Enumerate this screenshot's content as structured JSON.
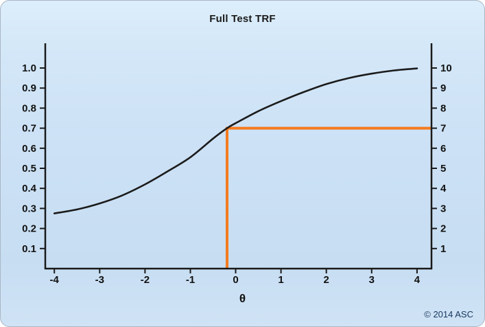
{
  "title": "Full Test TRF",
  "footer": {
    "copyright": "© 2014 ASC"
  },
  "chart_data": {
    "type": "line",
    "title": "Full Test TRF",
    "xlabel": "θ",
    "x_ticks": [
      -4,
      -3,
      -2,
      -1,
      0,
      1,
      2,
      3,
      4
    ],
    "y_ticks_left": [
      0.1,
      0.2,
      0.3,
      0.4,
      0.5,
      0.6,
      0.7,
      0.8,
      0.9,
      1.0
    ],
    "y_ticks_right": [
      1,
      2,
      3,
      4,
      5,
      6,
      7,
      8,
      9,
      10
    ],
    "xlim": [
      -4.2,
      4.32
    ],
    "ylim": [
      0,
      1.1233
    ],
    "grid": false,
    "legend": false,
    "colors": {
      "axis": "#1a1a1a",
      "curve": "#1b1b1b",
      "annotation": "#f57b1f",
      "copyright_text": "#17365d"
    },
    "series": [
      {
        "name": "Full Test TRF curve",
        "color": "#1b1b1b",
        "x": [
          -4,
          -3.5,
          -3,
          -2.5,
          -2,
          -1.5,
          -1,
          -0.5,
          -0.19,
          0,
          0.5,
          1,
          1.5,
          2,
          2.5,
          3,
          3.5,
          4
        ],
        "y": [
          0.275,
          0.295,
          0.325,
          0.365,
          0.42,
          0.485,
          0.555,
          0.648,
          0.7,
          0.725,
          0.785,
          0.835,
          0.88,
          0.92,
          0.95,
          0.972,
          0.988,
          0.998
        ]
      }
    ],
    "annotation": {
      "type": "crosshair",
      "color": "#f57b1f",
      "x": -0.19,
      "y": 0.7,
      "description": "orange vertical line at θ ≈ -0.2 rising from the x-axis to the curve at TRF = 0.7, then horizontal to the right axis at 7"
    }
  }
}
